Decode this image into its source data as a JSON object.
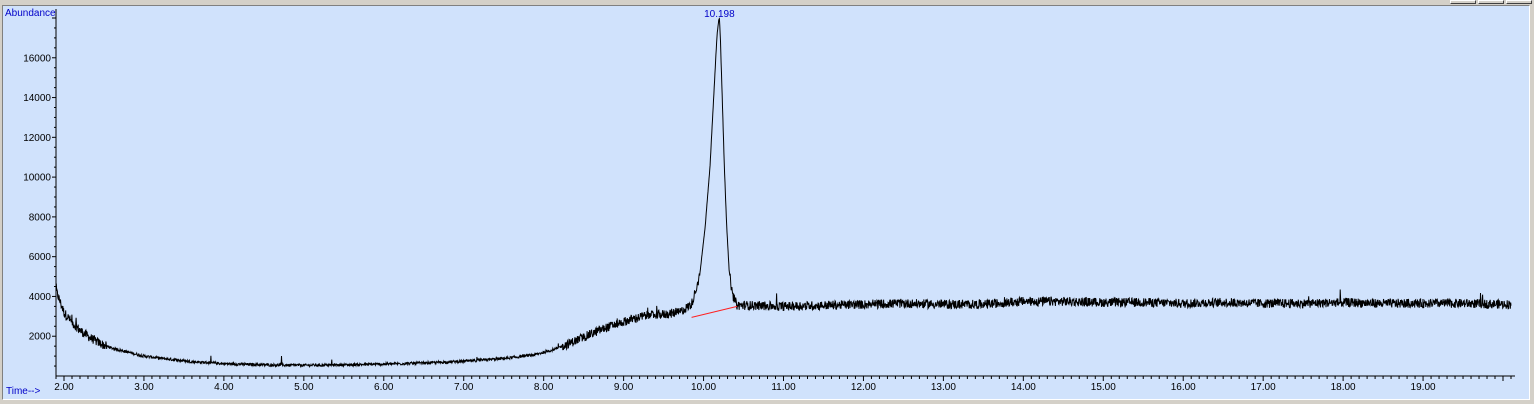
{
  "chart_data": {
    "type": "line",
    "ylabel": "Abundance",
    "xlabel": "Time-->",
    "xlim": [
      1.9,
      20.15
    ],
    "ylim": [
      0,
      18000
    ],
    "x_ticks": [
      "2.00",
      "3.00",
      "4.00",
      "5.00",
      "6.00",
      "7.00",
      "8.00",
      "9.00",
      "10.00",
      "11.00",
      "12.00",
      "13.00",
      "14.00",
      "15.00",
      "16.00",
      "17.00",
      "18.00",
      "19.00"
    ],
    "y_ticks": [
      "2000",
      "4000",
      "6000",
      "8000",
      "10000",
      "12000",
      "14000",
      "16000"
    ],
    "peak_label": "10.198",
    "peak": {
      "x": 10.198,
      "y": 18000
    },
    "baseline_segment": {
      "x": [
        9.85,
        10.42
      ],
      "y": [
        2950,
        3500
      ],
      "color": "#ff2020"
    },
    "trace_color": "#000000",
    "label_color": "#0000c8",
    "background_color": "#d0e2fc",
    "series": [
      {
        "x": [
          1.9,
          2.0,
          2.1,
          2.2,
          2.3,
          2.4,
          2.5,
          2.6,
          2.8,
          3.0,
          3.3,
          3.6,
          4.0,
          4.5,
          5.0,
          5.5,
          6.0,
          6.5,
          7.0,
          7.3,
          7.6,
          7.9,
          8.1,
          8.3,
          8.5,
          8.7,
          8.9,
          9.1,
          9.3,
          9.5,
          9.7,
          9.85,
          9.95,
          10.02,
          10.08,
          10.12,
          10.15,
          10.17,
          10.19,
          10.198,
          10.21,
          10.23,
          10.26,
          10.29,
          10.32,
          10.36,
          10.42,
          10.6,
          11.0,
          11.5,
          12.0,
          12.5,
          13.0,
          13.5,
          14.0,
          14.5,
          15.0,
          15.5,
          16.0,
          16.5,
          17.0,
          17.5,
          18.0,
          18.5,
          19.0,
          19.5,
          20.1
        ],
        "y": [
          4300,
          3200,
          2700,
          2300,
          2000,
          1750,
          1550,
          1400,
          1200,
          1000,
          850,
          720,
          620,
          560,
          540,
          560,
          600,
          650,
          740,
          820,
          920,
          1080,
          1300,
          1600,
          1950,
          2300,
          2600,
          2850,
          3050,
          3100,
          3200,
          3600,
          5000,
          7500,
          10500,
          13500,
          15800,
          17200,
          17900,
          18000,
          17000,
          14500,
          10500,
          7500,
          5300,
          4100,
          3550,
          3550,
          3500,
          3550,
          3600,
          3650,
          3600,
          3600,
          3750,
          3750,
          3700,
          3700,
          3650,
          3700,
          3650,
          3650,
          3700,
          3650,
          3650,
          3650,
          3600
        ]
      }
    ]
  }
}
